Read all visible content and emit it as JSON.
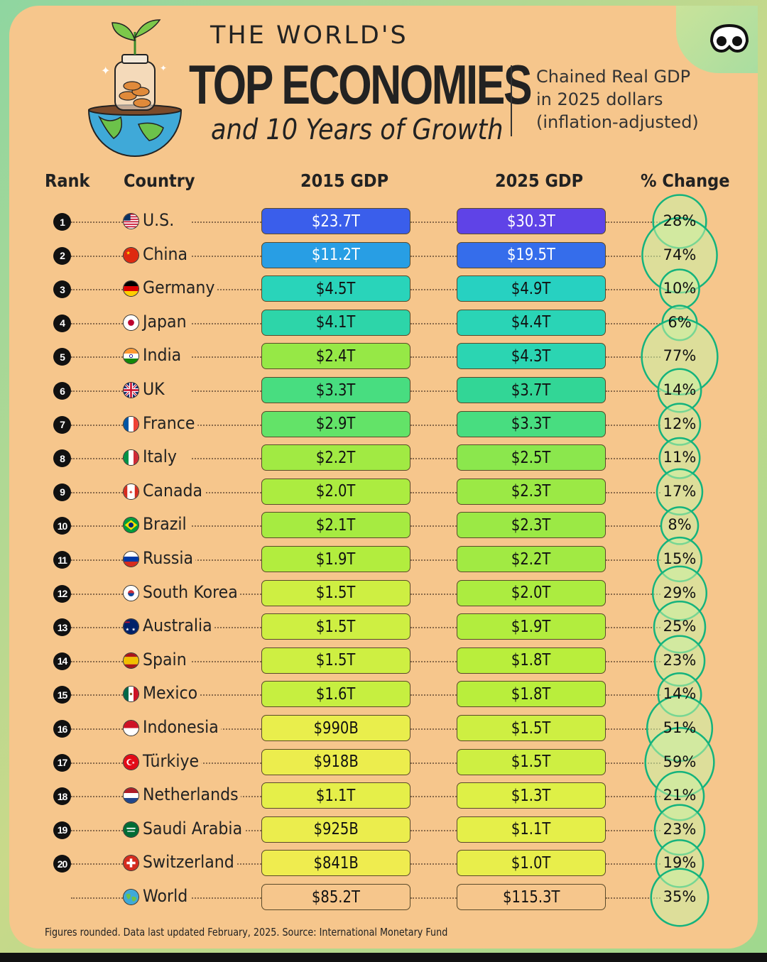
{
  "header": {
    "kicker": "THE WORLD'S",
    "headline": "TOP ECONOMIES",
    "subtitle": "and 10 Years of Growth",
    "note": [
      "Chained Real GDP",
      "in 2025 dollars",
      "(inflation-adjusted)"
    ]
  },
  "columns": {
    "rank": "Rank",
    "country": "Country",
    "gdp2015": "2015 GDP",
    "gdp2025": "2025 GDP",
    "change": "% Change"
  },
  "footer": "Figures rounded. Data last updated February, 2025. Source: International Monetary Fund",
  "colors": {
    "card": "#f6c68c",
    "bubble_stroke": "#14b37d",
    "bubble_fill": "#b7ef95"
  },
  "chart_data": {
    "type": "table",
    "title": "THE WORLD'S TOP ECONOMIES and 10 Years of Growth",
    "subtitle": "Chained Real GDP in 2025 dollars (inflation-adjusted)",
    "columns": [
      "Rank",
      "Country",
      "2015 GDP",
      "2025 GDP",
      "% Change"
    ],
    "rows": [
      {
        "rank": "1",
        "country": "U.S.",
        "flag": "us-flag",
        "gdp2015": "$23.7T",
        "gdp2025": "$30.3T",
        "change": "28%",
        "change_value": 28,
        "gdp2015_value": 23.7,
        "gdp2025_value": 30.3
      },
      {
        "rank": "2",
        "country": "China",
        "flag": "china-flag",
        "gdp2015": "$11.2T",
        "gdp2025": "$19.5T",
        "change": "74%",
        "change_value": 74,
        "gdp2015_value": 11.2,
        "gdp2025_value": 19.5
      },
      {
        "rank": "3",
        "country": "Germany",
        "flag": "germany-flag",
        "gdp2015": "$4.5T",
        "gdp2025": "$4.9T",
        "change": "10%",
        "change_value": 10,
        "gdp2015_value": 4.5,
        "gdp2025_value": 4.9
      },
      {
        "rank": "4",
        "country": "Japan",
        "flag": "japan-flag",
        "gdp2015": "$4.1T",
        "gdp2025": "$4.4T",
        "change": "6%",
        "change_value": 6,
        "gdp2015_value": 4.1,
        "gdp2025_value": 4.4
      },
      {
        "rank": "5",
        "country": "India",
        "flag": "india-flag",
        "gdp2015": "$2.4T",
        "gdp2025": "$4.3T",
        "change": "77%",
        "change_value": 77,
        "gdp2015_value": 2.4,
        "gdp2025_value": 4.3
      },
      {
        "rank": "6",
        "country": "UK",
        "flag": "uk-flag",
        "gdp2015": "$3.3T",
        "gdp2025": "$3.7T",
        "change": "14%",
        "change_value": 14,
        "gdp2015_value": 3.3,
        "gdp2025_value": 3.7
      },
      {
        "rank": "7",
        "country": "France",
        "flag": "france-flag",
        "gdp2015": "$2.9T",
        "gdp2025": "$3.3T",
        "change": "12%",
        "change_value": 12,
        "gdp2015_value": 2.9,
        "gdp2025_value": 3.3
      },
      {
        "rank": "8",
        "country": "Italy",
        "flag": "italy-flag",
        "gdp2015": "$2.2T",
        "gdp2025": "$2.5T",
        "change": "11%",
        "change_value": 11,
        "gdp2015_value": 2.2,
        "gdp2025_value": 2.5
      },
      {
        "rank": "9",
        "country": "Canada",
        "flag": "canada-flag",
        "gdp2015": "$2.0T",
        "gdp2025": "$2.3T",
        "change": "17%",
        "change_value": 17,
        "gdp2015_value": 2.0,
        "gdp2025_value": 2.3
      },
      {
        "rank": "10",
        "country": "Brazil",
        "flag": "brazil-flag",
        "gdp2015": "$2.1T",
        "gdp2025": "$2.3T",
        "change": "8%",
        "change_value": 8,
        "gdp2015_value": 2.1,
        "gdp2025_value": 2.3
      },
      {
        "rank": "11",
        "country": "Russia",
        "flag": "russia-flag",
        "gdp2015": "$1.9T",
        "gdp2025": "$2.2T",
        "change": "15%",
        "change_value": 15,
        "gdp2015_value": 1.9,
        "gdp2025_value": 2.2
      },
      {
        "rank": "12",
        "country": "South Korea",
        "flag": "south-korea-flag",
        "gdp2015": "$1.5T",
        "gdp2025": "$2.0T",
        "change": "29%",
        "change_value": 29,
        "gdp2015_value": 1.5,
        "gdp2025_value": 2.0
      },
      {
        "rank": "13",
        "country": "Australia",
        "flag": "australia-flag",
        "gdp2015": "$1.5T",
        "gdp2025": "$1.9T",
        "change": "25%",
        "change_value": 25,
        "gdp2015_value": 1.5,
        "gdp2025_value": 1.9
      },
      {
        "rank": "14",
        "country": "Spain",
        "flag": "spain-flag",
        "gdp2015": "$1.5T",
        "gdp2025": "$1.8T",
        "change": "23%",
        "change_value": 23,
        "gdp2015_value": 1.5,
        "gdp2025_value": 1.8
      },
      {
        "rank": "15",
        "country": "Mexico",
        "flag": "mexico-flag",
        "gdp2015": "$1.6T",
        "gdp2025": "$1.8T",
        "change": "14%",
        "change_value": 14,
        "gdp2015_value": 1.6,
        "gdp2025_value": 1.8
      },
      {
        "rank": "16",
        "country": "Indonesia",
        "flag": "indonesia-flag",
        "gdp2015": "$990B",
        "gdp2025": "$1.5T",
        "change": "51%",
        "change_value": 51,
        "gdp2015_value": 0.99,
        "gdp2025_value": 1.5
      },
      {
        "rank": "17",
        "country": "Türkiye",
        "flag": "turkiye-flag",
        "gdp2015": "$918B",
        "gdp2025": "$1.5T",
        "change": "59%",
        "change_value": 59,
        "gdp2015_value": 0.918,
        "gdp2025_value": 1.5
      },
      {
        "rank": "18",
        "country": "Netherlands",
        "flag": "netherlands-flag",
        "gdp2015": "$1.1T",
        "gdp2025": "$1.3T",
        "change": "21%",
        "change_value": 21,
        "gdp2015_value": 1.1,
        "gdp2025_value": 1.3
      },
      {
        "rank": "19",
        "country": "Saudi Arabia",
        "flag": "saudi-arabia-flag",
        "gdp2015": "$925B",
        "gdp2025": "$1.1T",
        "change": "23%",
        "change_value": 23,
        "gdp2015_value": 0.925,
        "gdp2025_value": 1.1
      },
      {
        "rank": "20",
        "country": "Switzerland",
        "flag": "switzerland-flag",
        "gdp2015": "$841B",
        "gdp2025": "$1.0T",
        "change": "19%",
        "change_value": 19,
        "gdp2015_value": 0.841,
        "gdp2025_value": 1.0
      },
      {
        "rank": "",
        "country": "World",
        "flag": "globe-icon",
        "gdp2015": "$85.2T",
        "gdp2025": "$115.3T",
        "change": "35%",
        "change_value": 35,
        "gdp2015_value": 85.2,
        "gdp2025_value": 115.3
      }
    ]
  }
}
